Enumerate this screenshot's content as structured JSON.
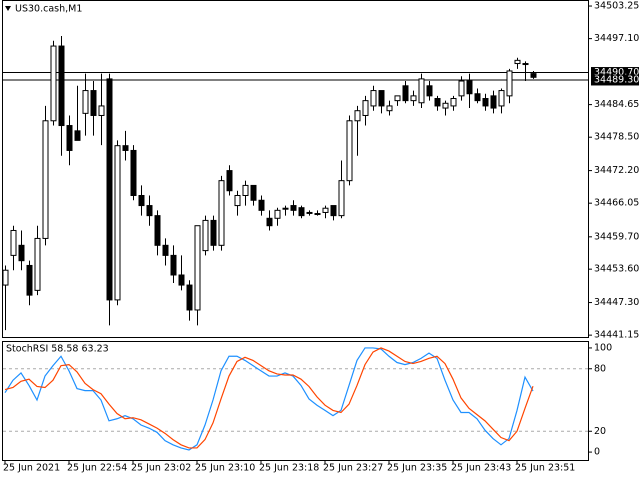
{
  "chart_data": [
    {
      "type": "candlestick",
      "title": "US30.cash,M1",
      "categories": [
        "25 Jun 2021",
        null,
        null,
        null,
        null,
        null,
        null,
        null,
        "25 Jun 22:54",
        null,
        null,
        null,
        null,
        null,
        null,
        null,
        "25 Jun 23:02",
        null,
        null,
        null,
        null,
        null,
        null,
        null,
        "25 Jun 23:10",
        null,
        null,
        null,
        null,
        null,
        null,
        null,
        "25 Jun 23:18",
        null,
        null,
        null,
        null,
        null,
        null,
        null,
        "25 Jun 23:27",
        null,
        null,
        null,
        null,
        null,
        null,
        null,
        "25 Jun 23:35",
        null,
        null,
        null,
        null,
        null,
        null,
        null,
        "25 Jun 23:43",
        null,
        null,
        null,
        null,
        null,
        null,
        null,
        "25 Jun 23:51",
        null,
        null
      ],
      "open": [
        34450.6,
        34456.2,
        34458.1,
        34454.3,
        34449.6,
        34459.4,
        34481.6,
        34495.7,
        34480.7,
        34479.7,
        34483.0,
        34487.3,
        34482.6,
        34489.5,
        34447.8,
        34476.9,
        34476.0,
        34467.5,
        34465.6,
        34463.7,
        34458.1,
        34456.2,
        34452.5,
        34450.6,
        34445.9,
        34457.1,
        34462.8,
        34458.1,
        34472.2,
        34465.6,
        34467.5,
        34469.4,
        34466.6,
        34463.2,
        34463.2,
        34465.1,
        34465.6,
        34465.2,
        34464.3,
        34464.1,
        34464.3,
        34465.6,
        34463.7,
        34470.3,
        34481.6,
        34482.6,
        34484.4,
        34487.3,
        34483.5,
        34485.4,
        34488.2,
        34485.4,
        34485.0,
        34488.2,
        34485.8,
        34484.0,
        34484.4,
        34486.3,
        34489.1,
        34486.7,
        34485.8,
        34486.3,
        34484.4,
        34486.3,
        34492.4,
        34492.4,
        34490.5
      ],
      "high": [
        34454.3,
        34461.8,
        34460.9,
        34455.2,
        34461.8,
        34484.4,
        34496.7,
        34497.6,
        34482.6,
        34488.2,
        34490.5,
        34489.1,
        34490.5,
        34490.5,
        34477.9,
        34479.7,
        34477.0,
        34469.4,
        34467.5,
        34464.7,
        34459.4,
        34458.1,
        34456.2,
        34451.5,
        34461.8,
        34463.7,
        34463.7,
        34471.2,
        34473.2,
        34468.4,
        34470.3,
        34469.4,
        34467.5,
        34464.7,
        34465.2,
        34465.6,
        34466.6,
        34465.6,
        34464.7,
        34464.7,
        34465.6,
        34465.6,
        34474.1,
        34482.6,
        34484.4,
        34486.3,
        34488.2,
        34487.3,
        34485.4,
        34486.3,
        34489.1,
        34487.3,
        34490.5,
        34489.1,
        34486.3,
        34485.4,
        34486.3,
        34490.0,
        34490.5,
        34487.7,
        34486.7,
        34487.3,
        34487.7,
        34491.4,
        34493.5,
        34492.8,
        34491.0
      ],
      "low": [
        34442.1,
        34453.4,
        34453.4,
        34446.8,
        34448.7,
        34458.1,
        34480.7,
        34475.0,
        34473.2,
        34477.9,
        34478.8,
        34478.8,
        34477.0,
        34443.0,
        34446.8,
        34474.1,
        34466.6,
        34463.7,
        34461.8,
        34456.2,
        34454.3,
        34451.0,
        34449.6,
        34443.9,
        34443.0,
        34456.2,
        34457.1,
        34457.1,
        34467.5,
        34463.7,
        34465.6,
        34465.6,
        34463.7,
        34460.9,
        34461.8,
        34463.7,
        34463.7,
        34463.2,
        34463.7,
        34463.7,
        34463.2,
        34462.8,
        34463.2,
        34469.4,
        34475.0,
        34480.7,
        34483.5,
        34483.0,
        34482.6,
        34484.4,
        34484.9,
        34484.4,
        34484.0,
        34485.4,
        34483.5,
        34482.6,
        34483.5,
        34485.4,
        34484.0,
        34484.9,
        34483.5,
        34483.0,
        34483.0,
        34484.9,
        34491.4,
        34489.1,
        34489.5
      ],
      "close": [
        34453.4,
        34460.9,
        34455.2,
        34448.7,
        34459.4,
        34481.6,
        34495.7,
        34480.7,
        34476.0,
        34477.9,
        34487.3,
        34482.6,
        34484.4,
        34447.8,
        34476.9,
        34476.0,
        34467.5,
        34465.6,
        34463.7,
        34458.1,
        34456.2,
        34452.5,
        34450.6,
        34445.9,
        34461.8,
        34462.8,
        34458.1,
        34470.3,
        34468.4,
        34467.5,
        34469.4,
        34466.6,
        34464.7,
        34461.8,
        34464.7,
        34465.1,
        34464.7,
        34463.7,
        34464.3,
        34464.1,
        34465.1,
        34463.7,
        34470.3,
        34481.6,
        34483.5,
        34485.4,
        34487.3,
        34484.4,
        34484.4,
        34486.3,
        34485.4,
        34486.3,
        34489.5,
        34486.3,
        34484.4,
        34484.9,
        34485.8,
        34489.1,
        34486.7,
        34485.4,
        34484.4,
        34484.0,
        34487.3,
        34491.0,
        34493.0,
        34492.4,
        34489.8
      ],
      "ylim": [
        34440.8,
        34504.2
      ],
      "yticks": [
        34503.25,
        {
          "value": 34497.1,
          "label": "34497.10"
        },
        34484.65,
        {
          "value": 34478.5,
          "label": "34478.50"
        },
        {
          "value": 34472.2,
          "label": "34472.20"
        },
        34466.05,
        {
          "value": 34459.7,
          "label": "34459.70"
        },
        {
          "value": 34453.6,
          "label": "34453.60"
        },
        {
          "value": 34447.3,
          "label": "34447.30"
        },
        34441.15
      ],
      "price_lines": [
        {
          "value": 34490.7,
          "label": "34490.70"
        },
        {
          "value": 34489.3,
          "label": "34489.30"
        }
      ]
    },
    {
      "type": "line",
      "title": "StochRSI 58.58 63.23",
      "series": [
        {
          "color": "#1e90ff",
          "values": [
            57,
            69,
            76,
            64,
            50,
            73,
            83,
            92,
            78,
            61,
            59,
            59,
            50,
            30,
            32,
            35,
            32,
            26,
            23,
            19,
            11,
            7,
            4,
            2,
            7,
            26,
            50,
            78,
            92,
            92,
            88,
            83,
            78,
            73,
            73,
            76,
            73,
            64,
            51,
            45,
            40,
            35,
            40,
            64,
            88,
            100,
            100,
            99,
            92,
            86,
            84,
            86,
            90,
            95,
            90,
            69,
            50,
            38,
            38,
            32,
            21,
            13,
            7,
            13,
            40,
            72,
            58.58
          ]
        },
        {
          "color": "#ff4500",
          "values": [
            60,
            62,
            68,
            70,
            63,
            62,
            69,
            83,
            84,
            77,
            66,
            60,
            56,
            46,
            37,
            32,
            33,
            31,
            27,
            23,
            18,
            12,
            7,
            4,
            4,
            12,
            28,
            51,
            73,
            87,
            91,
            88,
            83,
            78,
            75,
            74,
            74,
            70,
            63,
            53,
            45,
            40,
            38,
            46,
            64,
            84,
            96,
            100,
            97,
            92,
            87,
            85,
            87,
            90,
            92,
            85,
            70,
            52,
            42,
            36,
            30,
            22,
            14,
            11,
            20,
            42,
            63.23
          ]
        }
      ],
      "ylim": [
        -7.6,
        105.7
      ],
      "yticks": [
        100,
        80,
        20,
        0
      ],
      "dashed_levels": [
        80,
        20
      ]
    }
  ]
}
